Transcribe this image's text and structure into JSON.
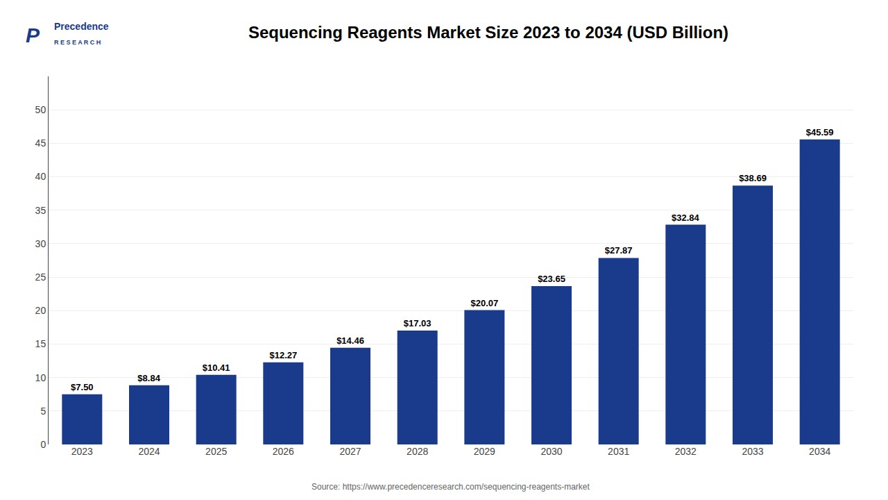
{
  "chart_data": {
    "type": "bar",
    "title": "Sequencing Reagents Market Size 2023 to 2034 (USD Billion)",
    "categories": [
      "2023",
      "2024",
      "2025",
      "2026",
      "2027",
      "2028",
      "2029",
      "2030",
      "2031",
      "2032",
      "2033",
      "2034"
    ],
    "values": [
      7.5,
      8.84,
      10.41,
      12.27,
      14.46,
      17.03,
      20.07,
      23.65,
      27.87,
      32.84,
      38.69,
      45.59
    ],
    "value_labels": [
      "$7.50",
      "$8.84",
      "$10.41",
      "$12.27",
      "$14.46",
      "$17.03",
      "$20.07",
      "$23.65",
      "$27.87",
      "$32.84",
      "$38.69",
      "$45.59"
    ],
    "data_labels": true,
    "color": "#1a3a8c",
    "ylim": [
      0,
      55
    ],
    "yticks": [
      0,
      5,
      10,
      15,
      20,
      25,
      30,
      35,
      40,
      45,
      50
    ],
    "grid": true,
    "annotations": [
      "P",
      "Precedence",
      "R E S E A R C H",
      "Source: https://www.precedenceresearch.com/sequencing-reagents-market"
    ]
  }
}
